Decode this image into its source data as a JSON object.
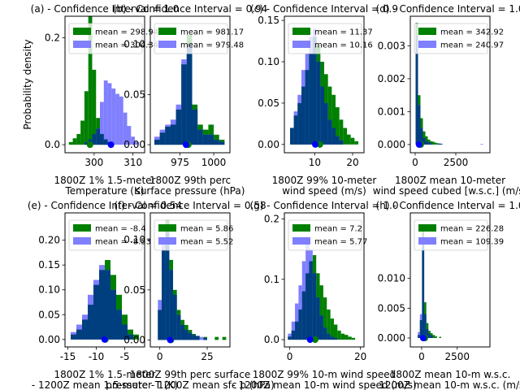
{
  "figure": {
    "ylabel_shared": "Probability density",
    "colors": {
      "green": "#008000",
      "blue": "#7f7fff",
      "overlap": "#003f7f",
      "dot_blue": "#0000ff",
      "dot_green": "#008000"
    }
  },
  "chart_data": [
    {
      "type": "bar",
      "title": "(a) - Confidence Interval = 1.0",
      "xlabel": "1800Z 1% 1.5-meter\nTemperature (K)",
      "ylabel": "Probability density",
      "xlim": [
        292.5,
        313
      ],
      "ylim": [
        -0.015,
        0.24
      ],
      "xticks": [
        300,
        310
      ],
      "yticks": [
        0.0,
        0.2
      ],
      "legend": [
        "mean = 298.94",
        "mean = 304.34"
      ],
      "series": [
        {
          "name": "mean = 298.94",
          "mean": 298.94,
          "x": [
            294,
            295,
            296,
            297,
            298,
            299,
            300,
            301,
            302,
            303,
            304
          ],
          "values": [
            0.005,
            0.012,
            0.02,
            0.045,
            0.1,
            0.24,
            0.14,
            0.05,
            0.02,
            0.01,
            0.005
          ]
        },
        {
          "name": "mean = 304.34",
          "mean": 304.34,
          "x": [
            298,
            299,
            300,
            301,
            302,
            303,
            304,
            305,
            306,
            307,
            308,
            309,
            310,
            311
          ],
          "values": [
            0.005,
            0.01,
            0.02,
            0.03,
            0.08,
            0.12,
            0.115,
            0.105,
            0.095,
            0.09,
            0.06,
            0.035,
            0.015,
            0.005
          ]
        }
      ]
    },
    {
      "type": "bar",
      "title": "(b) - Confidence Interval = 0.94",
      "xlabel": "1800Z 99th perc\nsurface pressure (hPa)",
      "xlim": [
        953,
        1012
      ],
      "ylim": [
        -0.008,
        0.128
      ],
      "xticks": [
        975,
        1000
      ],
      "yticks": [
        0.0,
        0.05,
        0.1
      ],
      "legend": [
        "mean = 981.17",
        "mean = 979.48"
      ],
      "series": [
        {
          "name": "mean = 981.17",
          "mean": 981.17,
          "x": [
            958,
            962,
            966,
            970,
            974,
            978,
            982,
            986,
            990,
            994,
            998,
            1002,
            1006
          ],
          "values": [
            0.005,
            0.012,
            0.018,
            0.02,
            0.035,
            0.08,
            0.11,
            0.04,
            0.02,
            0.015,
            0.02,
            0.01,
            0.005
          ]
        },
        {
          "name": "mean = 979.48",
          "mean": 979.48,
          "x": [
            958,
            962,
            966,
            970,
            974,
            978,
            982,
            986,
            990,
            994,
            998,
            1002,
            1006
          ],
          "values": [
            0.008,
            0.015,
            0.02,
            0.025,
            0.04,
            0.085,
            0.1,
            0.035,
            0.015,
            0.01,
            0.01,
            0.005,
            0.003
          ]
        }
      ]
    },
    {
      "type": "bar",
      "title": "(c) - Confidence Interval = 0.9",
      "xlabel": "1800Z 99% 10-meter\nwind speed (m/s)",
      "xlim": [
        2,
        23
      ],
      "ylim": [
        -0.01,
        0.155
      ],
      "xticks": [
        10,
        20
      ],
      "yticks": [
        0.0,
        0.05,
        0.1,
        0.15
      ],
      "legend": [
        "mean = 11.37",
        "mean = 10.16"
      ],
      "series": [
        {
          "name": "mean = 11.37",
          "mean": 11.37,
          "x": [
            4,
            5,
            6,
            7,
            8,
            9,
            10,
            11,
            12,
            13,
            14,
            15,
            16,
            17,
            18,
            19,
            20,
            21
          ],
          "values": [
            0.02,
            0.035,
            0.05,
            0.07,
            0.09,
            0.11,
            0.13,
            0.12,
            0.1,
            0.085,
            0.07,
            0.06,
            0.045,
            0.03,
            0.02,
            0.012,
            0.008,
            0.004
          ]
        },
        {
          "name": "mean = 10.16",
          "mean": 10.16,
          "x": [
            4,
            5,
            6,
            7,
            8,
            9,
            10,
            11,
            12,
            13,
            14,
            15,
            16,
            17
          ],
          "values": [
            0.02,
            0.04,
            0.06,
            0.09,
            0.11,
            0.13,
            0.14,
            0.1,
            0.07,
            0.05,
            0.03,
            0.02,
            0.01,
            0.005
          ]
        }
      ]
    },
    {
      "type": "bar",
      "title": "(d) - Confidence Interval = 1.0",
      "xlabel": "1800Z mean 10-meter\nwind speed cubed [w.s.c.] (m/s)",
      "xlim": [
        -300,
        4600
      ],
      "ylim": [
        -0.00025,
        0.0039
      ],
      "xticks": [
        0,
        2500
      ],
      "yticks": [
        0.0,
        0.001,
        0.002,
        0.003
      ],
      "legend": [
        "mean = 342.92",
        "mean = 240.97"
      ],
      "series": [
        {
          "name": "mean = 342.92",
          "mean": 342.92,
          "x": [
            100,
            250,
            400,
            550,
            700,
            850,
            1000,
            1150,
            1300,
            1450,
            1600
          ],
          "values": [
            0.0037,
            0.0015,
            0.0008,
            0.0004,
            0.00025,
            0.00015,
            0.0001,
            8e-05,
            5e-05,
            3e-05,
            2e-05
          ]
        },
        {
          "name": "mean = 240.97",
          "mean": 240.97,
          "x": [
            100,
            250,
            400,
            550,
            700,
            850,
            1000,
            1450,
            1600,
            4100
          ],
          "values": [
            0.0033,
            0.0012,
            0.0005,
            0.0002,
            0.0001,
            6e-05,
            4e-05,
            3e-05,
            3e-05,
            2e-05
          ]
        }
      ]
    },
    {
      "type": "bar",
      "title": "(e) - Confidence Interval = 0.54",
      "xlabel": "1800Z 1% 1.5-meter\n- 1200Z mean 1.5-meter T (K)",
      "xlim": [
        -15.5,
        -1.5
      ],
      "ylim": [
        -0.015,
        0.255
      ],
      "xticks": [
        -15,
        -10,
        -5
      ],
      "yticks": [
        0.0,
        0.05,
        0.1,
        0.15,
        0.2
      ],
      "legend": [
        "mean = -8.4",
        "mean = -8.53"
      ],
      "series": [
        {
          "name": "mean = -8.4",
          "mean": -8.4,
          "x": [
            -14,
            -13,
            -12,
            -11,
            -10,
            -9,
            -8,
            -7,
            -6,
            -5,
            -4,
            -3
          ],
          "values": [
            0.01,
            0.02,
            0.04,
            0.07,
            0.11,
            0.14,
            0.16,
            0.13,
            0.09,
            0.05,
            0.02,
            0.01
          ]
        },
        {
          "name": "mean = -8.53",
          "mean": -8.53,
          "x": [
            -14,
            -13,
            -12,
            -11,
            -10,
            -9,
            -8,
            -7,
            -6,
            -5,
            -4
          ],
          "values": [
            0.015,
            0.03,
            0.05,
            0.09,
            0.12,
            0.15,
            0.14,
            0.1,
            0.06,
            0.03,
            0.01
          ]
        }
      ]
    },
    {
      "type": "bar",
      "title": "(f) - Confidence Interval = 0.58",
      "xlabel": "1800Z 99th perc surface\npressure - 1200Z mean sfc p (hPa)",
      "xlim": [
        -5,
        37
      ],
      "ylim": [
        -0.007,
        0.127
      ],
      "xticks": [
        0,
        25
      ],
      "yticks": [
        0.0,
        0.05,
        0.1
      ],
      "legend": [
        "mean = 5.86",
        "mean = 5.52"
      ],
      "series": [
        {
          "name": "mean = 5.86",
          "mean": 5.86,
          "x": [
            0,
            2,
            4,
            6,
            8,
            10,
            12,
            14,
            16,
            18,
            20,
            24,
            30,
            34
          ],
          "values": [
            0.03,
            0.09,
            0.12,
            0.08,
            0.05,
            0.03,
            0.02,
            0.015,
            0.01,
            0.006,
            0.004,
            0.003,
            0.003,
            0.003
          ]
        },
        {
          "name": "mean = 5.52",
          "mean": 5.52,
          "x": [
            0,
            2,
            4,
            6,
            8,
            10,
            12,
            14,
            16,
            18,
            20,
            22,
            24
          ],
          "values": [
            0.04,
            0.1,
            0.11,
            0.07,
            0.045,
            0.025,
            0.015,
            0.01,
            0.007,
            0.005,
            0.004,
            0.003,
            0.002
          ]
        }
      ]
    },
    {
      "type": "bar",
      "title": "(g) - Confidence Interval = 1.0",
      "xlabel": "1800Z 99% 10-m wind speed\n- 1200Z mean 10-m wind speed (m/s)",
      "xlim": [
        -1.5,
        21
      ],
      "ylim": [
        -0.012,
        0.21
      ],
      "xticks": [
        0,
        20
      ],
      "yticks": [
        0.0,
        0.1,
        0.2
      ],
      "legend": [
        "mean = 7.2",
        "mean = 5.77"
      ],
      "series": [
        {
          "name": "mean = 7.2",
          "mean": 7.2,
          "x": [
            0,
            1,
            2,
            3,
            4,
            5,
            6,
            7,
            8,
            9,
            10,
            11,
            12,
            13,
            14,
            15,
            16,
            17,
            18
          ],
          "values": [
            0.005,
            0.015,
            0.03,
            0.05,
            0.08,
            0.11,
            0.13,
            0.14,
            0.11,
            0.09,
            0.07,
            0.05,
            0.035,
            0.025,
            0.015,
            0.01,
            0.008,
            0.005,
            0.003
          ]
        },
        {
          "name": "mean = 5.77",
          "mean": 5.77,
          "x": [
            0,
            1,
            2,
            3,
            4,
            5,
            6,
            7,
            8,
            9,
            10,
            11,
            12,
            13
          ],
          "values": [
            0.01,
            0.03,
            0.06,
            0.09,
            0.13,
            0.16,
            0.15,
            0.11,
            0.07,
            0.04,
            0.02,
            0.01,
            0.005,
            0.003
          ]
        }
      ]
    },
    {
      "type": "bar",
      "title": "(h) - Confidence Interval = 1.0",
      "xlabel": "1800Z mean 10-m w.s.c.\n- 1200Z mean 10-m w.s.c. (m/s)",
      "xlim": [
        -800,
        4800
      ],
      "ylim": [
        -0.0015,
        0.021
      ],
      "xticks": [
        0,
        2500
      ],
      "yticks": [
        0.0,
        0.005,
        0.01
      ],
      "legend": [
        "mean = 226.28",
        "mean = 109.39"
      ],
      "series": [
        {
          "name": "mean = 226.28",
          "mean": 226.28,
          "x": [
            -200,
            -50,
            100,
            250,
            400,
            550,
            700,
            850,
            1000,
            1300
          ],
          "values": [
            0.0005,
            0.003,
            0.019,
            0.006,
            0.0025,
            0.0012,
            0.0008,
            0.0005,
            0.0003,
            0.0002
          ]
        },
        {
          "name": "mean = 109.39",
          "mean": 109.39,
          "x": [
            -200,
            -50,
            100,
            250,
            400,
            550,
            700
          ],
          "values": [
            0.001,
            0.004,
            0.017,
            0.004,
            0.0015,
            0.0007,
            0.0004
          ]
        }
      ]
    }
  ]
}
